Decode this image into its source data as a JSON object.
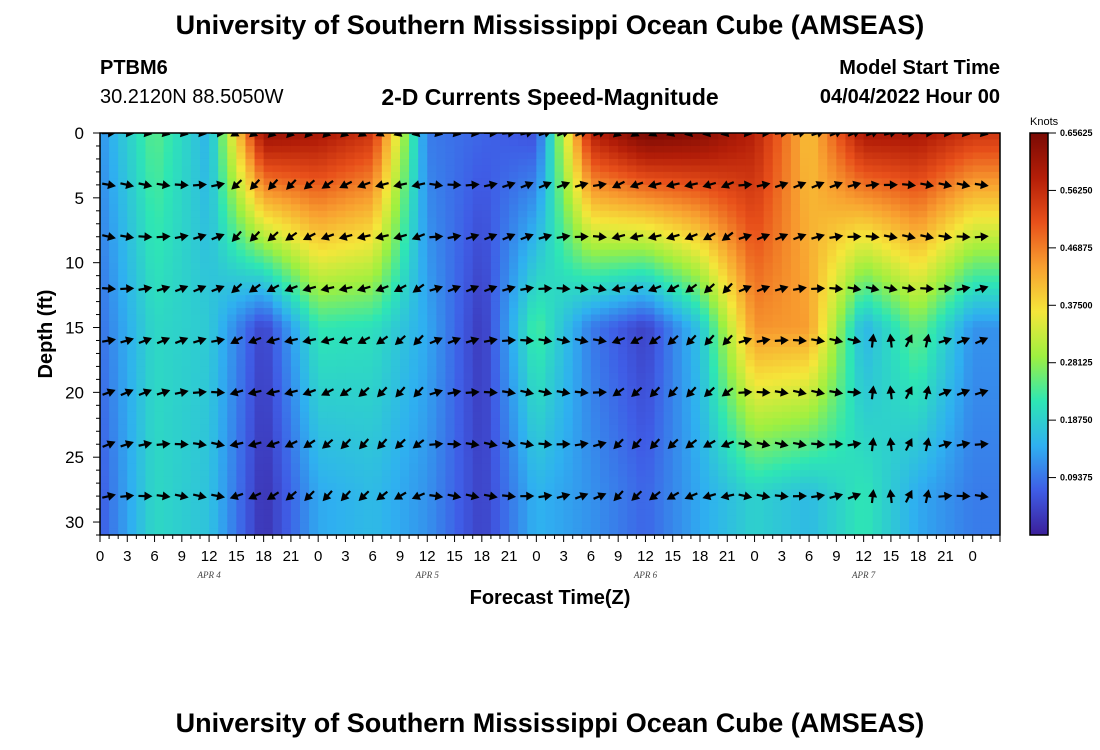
{
  "header": {
    "title": "University of Southern Mississippi Ocean Cube (AMSEAS)",
    "station": "PTBM6",
    "coords": "30.2120N  88.5050W",
    "subtitle": "2-D Currents Speed-Magnitude",
    "model_start_label": "Model Start Time",
    "model_start_time": "04/04/2022 Hour 00"
  },
  "footer": {
    "title": "University of Southern Mississippi Ocean Cube (AMSEAS)"
  },
  "colors": {
    "frame": "#000000",
    "arrow": "#000000",
    "scale": [
      "#3b1f9a",
      "#3f5de6",
      "#2fb0f0",
      "#2ee6b4",
      "#9ef040",
      "#f5e63a",
      "#f8a030",
      "#e8501a",
      "#b41e08",
      "#7a0a04"
    ]
  },
  "chart_data": {
    "type": "heatmap",
    "title": "2-D Currents Speed-Magnitude",
    "xlabel": "Forecast Time(Z)",
    "ylabel": "Depth (ft)",
    "ylim": [
      0,
      31
    ],
    "y_ticks": [
      0,
      5,
      10,
      15,
      20,
      25,
      30
    ],
    "x_hours": [
      0,
      99
    ],
    "x_tick_labels": [
      "0",
      "3",
      "6",
      "9",
      "12",
      "15",
      "18",
      "21",
      "0",
      "3",
      "6",
      "9",
      "12",
      "15",
      "18",
      "21",
      "0",
      "3",
      "6",
      "9",
      "12",
      "15",
      "18",
      "21",
      "0",
      "3",
      "6",
      "9",
      "12",
      "15",
      "18",
      "21",
      "0"
    ],
    "date_labels": [
      {
        "label": "APR 4",
        "hour": 12
      },
      {
        "label": "APR 5",
        "hour": 36
      },
      {
        "label": "APR 6",
        "hour": 60
      },
      {
        "label": "APR 7",
        "hour": 84
      }
    ],
    "colorbar": {
      "units": "Knots",
      "min": 0,
      "max": 0.65625,
      "ticks": [
        "0.65625",
        "0.56250",
        "0.46875",
        "0.37500",
        "0.28125",
        "0.18750",
        "0.09375"
      ]
    },
    "vector_depths_ft": [
      0,
      4,
      8,
      12,
      16,
      20,
      24,
      28
    ],
    "vector_hour_step": 2,
    "series": [
      {
        "name": "speed_knots_at_depth_0ft",
        "hours": [
          0,
          6,
          12,
          18,
          24,
          30,
          36,
          42,
          48,
          54,
          60,
          66,
          72,
          78,
          84,
          90,
          96
        ],
        "values": [
          0.12,
          0.25,
          0.15,
          0.62,
          0.6,
          0.55,
          0.1,
          0.08,
          0.06,
          0.58,
          0.66,
          0.64,
          0.58,
          0.4,
          0.6,
          0.6,
          0.55
        ]
      },
      {
        "name": "speed_knots_at_depth_15ft",
        "hours": [
          0,
          6,
          12,
          18,
          24,
          30,
          36,
          42,
          48,
          54,
          60,
          66,
          72,
          78,
          84,
          90,
          96
        ],
        "values": [
          0.09,
          0.2,
          0.18,
          0.04,
          0.22,
          0.21,
          0.14,
          0.03,
          0.24,
          0.1,
          0.04,
          0.17,
          0.45,
          0.44,
          0.15,
          0.26,
          0.12
        ]
      },
      {
        "name": "speed_knots_at_depth_28ft",
        "hours": [
          0,
          6,
          12,
          18,
          24,
          30,
          36,
          42,
          48,
          54,
          60,
          66,
          72,
          78,
          84,
          90,
          96
        ],
        "values": [
          0.07,
          0.2,
          0.17,
          0.02,
          0.14,
          0.16,
          0.12,
          0.04,
          0.15,
          0.12,
          0.08,
          0.14,
          0.19,
          0.16,
          0.22,
          0.14,
          0.1
        ]
      }
    ]
  }
}
